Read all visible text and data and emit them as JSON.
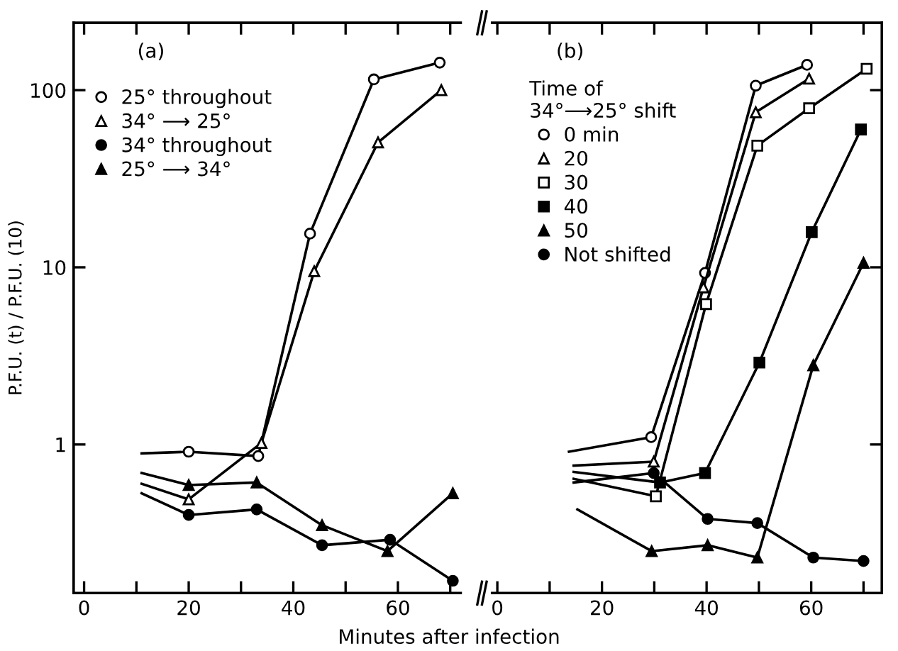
{
  "chart_data": [
    {
      "type": "line",
      "annotations": [
        "(a)"
      ],
      "xlabel": "Minutes after infection",
      "ylabel": "P.F.U. (t) / P.F.U. (10)",
      "legend": "top left",
      "log": "y",
      "tick_labels": "xy",
      "xlim": [
        -2,
        72
      ],
      "ylim": [
        0.145,
        240
      ],
      "xticks": [
        0,
        {
          "value": 10,
          "label": null
        },
        20,
        {
          "value": 30,
          "label": null
        },
        40,
        {
          "value": 50,
          "label": null
        },
        60,
        {
          "value": 70,
          "label": null
        }
      ],
      "yticks": [
        1,
        10,
        100
      ],
      "series": [
        {
          "name": "25° throughout",
          "color": "#000000",
          "marker": "circle",
          "colors": [
            "#ffffff",
            "#ffffff",
            "#ffffff",
            "#ffffff",
            "#ffffff",
            "#ffffff"
          ],
          "x": [
            11,
            20,
            33.3,
            43.2,
            55.4,
            68
          ],
          "values": [
            0.89,
            0.91,
            0.86,
            15.5,
            115,
            143
          ]
        },
        {
          "name": "34° ⟶ 25°",
          "color": "#000000",
          "marker": "triangle",
          "colors": [
            "#ffffff",
            "#ffffff",
            "#ffffff",
            "#ffffff",
            "#ffffff",
            "#ffffff"
          ],
          "x": [
            11,
            20,
            33.9,
            44,
            56.2,
            68.3
          ],
          "values": [
            0.6,
            0.49,
            1.02,
            9.5,
            50.7,
            100
          ]
        },
        {
          "name": "34° throughout",
          "color": "#000000",
          "marker": "circle",
          "x": [
            11,
            20,
            33,
            45.5,
            58.5,
            70.5
          ],
          "values": [
            0.53,
            0.4,
            0.43,
            0.27,
            0.29,
            0.17
          ]
        },
        {
          "name": "25° ⟶ 34°",
          "color": "#000000",
          "marker": "triangle",
          "x": [
            11,
            20,
            33,
            45.5,
            58,
            70.5
          ],
          "values": [
            0.69,
            0.59,
            0.61,
            0.35,
            0.25,
            0.53
          ]
        }
      ]
    },
    {
      "type": "line",
      "annotations": [
        "(b)"
      ],
      "legend": "top left",
      "legend_title": "Time of\n34°⟶25° shift",
      "log": "y",
      "tick_labels": "x",
      "xlim": [
        -1,
        73.5
      ],
      "ylim": [
        0.145,
        240
      ],
      "xticks": [
        0,
        {
          "value": 10,
          "label": null
        },
        20,
        {
          "value": 30,
          "label": null
        },
        40,
        {
          "value": 50,
          "label": null
        },
        60,
        {
          "value": 70,
          "label": null
        }
      ],
      "yticks": [
        1,
        10,
        100
      ],
      "series": [
        {
          "name": "0 min",
          "color": "#000000",
          "marker": "circle",
          "colors": [
            "#ffffff",
            "#ffffff",
            "#ffffff",
            "#ffffff",
            "#ffffff"
          ],
          "x": [
            13.7,
            29.4,
            39.7,
            49.4,
            59.2
          ],
          "values": [
            0.91,
            1.1,
            9.3,
            106,
            139
          ]
        },
        {
          "name": "20",
          "color": "#000000",
          "marker": "triangle",
          "colors": [
            "#ffffff",
            "#ffffff",
            "#ffffff",
            "#ffffff",
            "#ffffff"
          ],
          "x": [
            14.6,
            29.9,
            39.4,
            49.4,
            59.6
          ],
          "values": [
            0.76,
            0.8,
            7.7,
            75,
            116
          ]
        },
        {
          "name": "30",
          "color": "#000000",
          "marker": "square",
          "colors": [
            "#ffffff",
            "#ffffff",
            "#ffffff",
            "#ffffff",
            "#ffffff",
            "#ffffff"
          ],
          "x": [
            14.6,
            30.3,
            39.9,
            49.7,
            59.6,
            70.6
          ],
          "values": [
            0.64,
            0.51,
            6.2,
            48.6,
            79,
            132
          ]
        },
        {
          "name": "40",
          "color": "#000000",
          "marker": "square",
          "x": [
            14.6,
            31.1,
            39.7,
            50.1,
            60.1,
            69.5
          ],
          "values": [
            0.7,
            0.61,
            0.69,
            2.9,
            15.8,
            60
          ]
        },
        {
          "name": "50",
          "color": "#000000",
          "marker": "triangle",
          "x": [
            15.3,
            29.5,
            40.2,
            49.7,
            60.4,
            70
          ],
          "values": [
            0.43,
            0.25,
            0.27,
            0.23,
            2.8,
            10.6
          ]
        },
        {
          "name": "Not shifted",
          "color": "#000000",
          "marker": "circle",
          "x": [
            14.6,
            29.9,
            40.2,
            49.7,
            60.4,
            70
          ],
          "values": [
            0.61,
            0.69,
            0.38,
            0.36,
            0.23,
            0.22
          ]
        }
      ]
    }
  ]
}
